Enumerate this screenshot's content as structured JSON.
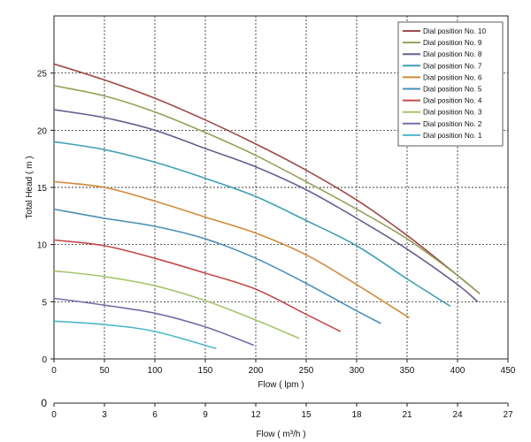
{
  "chart_data": {
    "type": "line",
    "xlabel": "Flow ( lpm )",
    "ylabel": "Total Head ( m )",
    "xlim": [
      0,
      450
    ],
    "ylim": [
      0,
      30
    ],
    "xticks": [
      0,
      50,
      100,
      150,
      200,
      250,
      300,
      350,
      400,
      450
    ],
    "yticks": [
      0,
      5,
      10,
      15,
      20,
      25
    ],
    "grid": true,
    "legend_position": "top-right",
    "secondary_axis": {
      "label": "Flow ( m³/h )",
      "ticks": [
        0,
        3,
        6,
        9,
        12,
        15,
        18,
        21,
        24,
        27
      ],
      "ylabel_tick": "0"
    },
    "series": [
      {
        "name": "Dial position No. 10",
        "color": "#9e4b4b",
        "x": [
          0,
          50,
          100,
          150,
          200,
          250,
          300,
          350,
          400,
          422
        ],
        "y": [
          25.8,
          24.4,
          22.8,
          20.9,
          18.8,
          16.5,
          13.9,
          10.8,
          7.3,
          5.7
        ]
      },
      {
        "name": "Dial position No. 9",
        "color": "#95a058",
        "x": [
          0,
          50,
          100,
          150,
          200,
          250,
          300,
          350,
          400,
          422
        ],
        "y": [
          23.9,
          23.0,
          21.6,
          19.8,
          17.8,
          15.5,
          13.1,
          10.5,
          7.3,
          5.7
        ]
      },
      {
        "name": "Dial position No. 8",
        "color": "#6a5e8e",
        "x": [
          0,
          50,
          100,
          150,
          200,
          250,
          300,
          350,
          400,
          420
        ],
        "y": [
          21.8,
          21.1,
          20.0,
          18.4,
          16.8,
          14.8,
          12.3,
          9.6,
          6.5,
          5.0
        ]
      },
      {
        "name": "Dial position No. 7",
        "color": "#3f9fb5",
        "x": [
          0,
          50,
          100,
          150,
          200,
          250,
          300,
          350,
          393
        ],
        "y": [
          19.0,
          18.3,
          17.2,
          15.8,
          14.2,
          12.1,
          9.9,
          7.0,
          4.6
        ]
      },
      {
        "name": "Dial position No. 6",
        "color": "#d18a3a",
        "x": [
          0,
          50,
          100,
          150,
          200,
          250,
          300,
          352
        ],
        "y": [
          15.5,
          15.0,
          13.8,
          12.4,
          11.0,
          9.1,
          6.5,
          3.6
        ]
      },
      {
        "name": "Dial position No. 5",
        "color": "#4b8fb8",
        "x": [
          0,
          50,
          100,
          150,
          200,
          250,
          300,
          324
        ],
        "y": [
          13.1,
          12.3,
          11.6,
          10.5,
          8.8,
          6.6,
          4.2,
          3.1
        ]
      },
      {
        "name": "Dial position No. 4",
        "color": "#c44a4a",
        "x": [
          0,
          50,
          100,
          150,
          200,
          250,
          284
        ],
        "y": [
          10.4,
          9.9,
          8.8,
          7.5,
          6.1,
          3.9,
          2.4
        ]
      },
      {
        "name": "Dial position No. 3",
        "color": "#a8c46a",
        "x": [
          0,
          50,
          100,
          150,
          200,
          243
        ],
        "y": [
          7.7,
          7.2,
          6.4,
          5.1,
          3.4,
          1.8
        ]
      },
      {
        "name": "Dial position No. 2",
        "color": "#7a6aa8",
        "x": [
          0,
          50,
          100,
          150,
          198
        ],
        "y": [
          5.3,
          4.7,
          4.0,
          2.8,
          1.2
        ]
      },
      {
        "name": "Dial position No. 1",
        "color": "#4cb8c8",
        "x": [
          0,
          50,
          100,
          161
        ],
        "y": [
          3.3,
          3.0,
          2.4,
          0.9
        ]
      }
    ]
  }
}
